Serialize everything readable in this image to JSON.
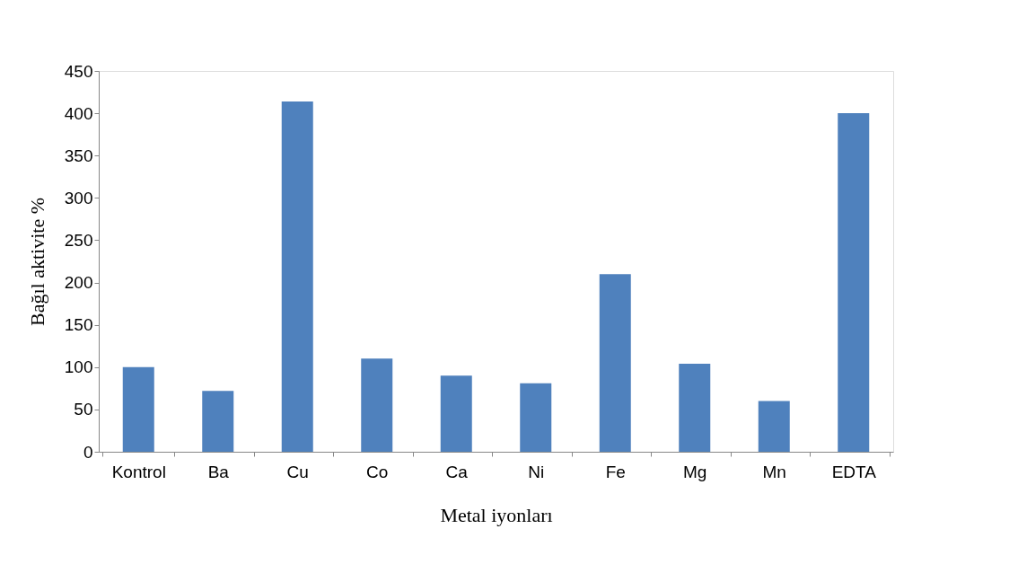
{
  "chart_data": {
    "type": "bar",
    "xlabel": "Metal iyonları",
    "ylabel": "Bağıl aktivite %",
    "categories": [
      "Kontrol",
      "Ba",
      "Cu",
      "Co",
      "Ca",
      "Ni",
      "Fe",
      "Mg",
      "Mn",
      "EDTA"
    ],
    "values": [
      100,
      72,
      414,
      110,
      90,
      81,
      210,
      104,
      60,
      400
    ],
    "color": "#4f81bd",
    "ylim": [
      0,
      450
    ],
    "yticks": [
      0,
      50,
      100,
      150,
      200,
      250,
      300,
      350,
      400,
      450
    ],
    "grid": false
  }
}
